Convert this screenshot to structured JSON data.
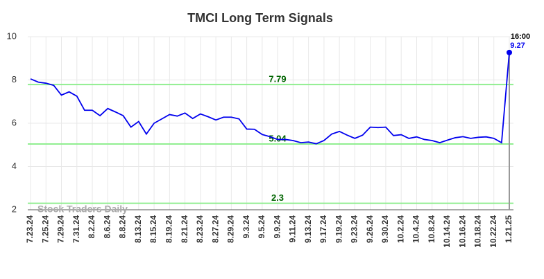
{
  "chart_data": {
    "type": "line",
    "title": "TMCI Long Term Signals",
    "categories": [
      "7.23.24",
      null,
      "7.25.24",
      null,
      "7.29.24",
      null,
      "7.31.24",
      null,
      "8.2.24",
      null,
      "8.6.24",
      null,
      "8.8.24",
      null,
      "8.13.24",
      null,
      "8.15.24",
      null,
      "8.19.24",
      null,
      "8.21.24",
      null,
      "8.23.24",
      null,
      "8.27.24",
      null,
      "8.29.24",
      null,
      "9.3.24",
      null,
      "9.5.24",
      null,
      "9.9.24",
      null,
      "9.11.24",
      null,
      "9.13.24",
      null,
      "9.17.24",
      null,
      "9.19.24",
      null,
      "9.23.24",
      null,
      "9.26.24",
      null,
      "9.30.24",
      null,
      "10.2.24",
      null,
      "10.4.24",
      null,
      "10.8.24",
      null,
      "10.14.24",
      null,
      "10.16.24",
      null,
      "10.18.24",
      null,
      "10.22.24",
      null,
      "1.21.25"
    ],
    "series": [
      {
        "color": "#0000ee",
        "values": [
          8.05,
          7.9,
          7.85,
          7.75,
          7.3,
          7.45,
          7.25,
          6.6,
          6.6,
          6.35,
          6.68,
          6.52,
          6.35,
          5.82,
          6.08,
          5.5,
          6.0,
          6.2,
          6.4,
          6.33,
          6.47,
          6.22,
          6.43,
          6.3,
          6.15,
          6.28,
          6.28,
          6.2,
          5.73,
          5.72,
          5.48,
          5.38,
          5.25,
          5.25,
          5.2,
          5.1,
          5.13,
          5.05,
          5.2,
          5.5,
          5.62,
          5.45,
          5.3,
          5.45,
          5.82,
          5.8,
          5.82,
          5.43,
          5.47,
          5.3,
          5.37,
          5.25,
          5.2,
          5.1,
          5.22,
          5.33,
          5.38,
          5.3,
          5.35,
          5.37,
          5.3,
          5.1,
          9.27
        ]
      }
    ],
    "ylim": [
      2,
      10
    ],
    "yticks": [
      2,
      4,
      6,
      8,
      10
    ],
    "grid": true,
    "hlines": [
      {
        "value": 7.79,
        "color": "#90ee90",
        "label_color": "#006400"
      },
      {
        "value": 5.04,
        "color": "#90ee90",
        "label_color": "#006400"
      },
      {
        "value": 2.3,
        "color": "#90ee90",
        "label_color": "#006400"
      }
    ],
    "last_time": "16:00",
    "watermark": "Stock Traders Daily"
  }
}
